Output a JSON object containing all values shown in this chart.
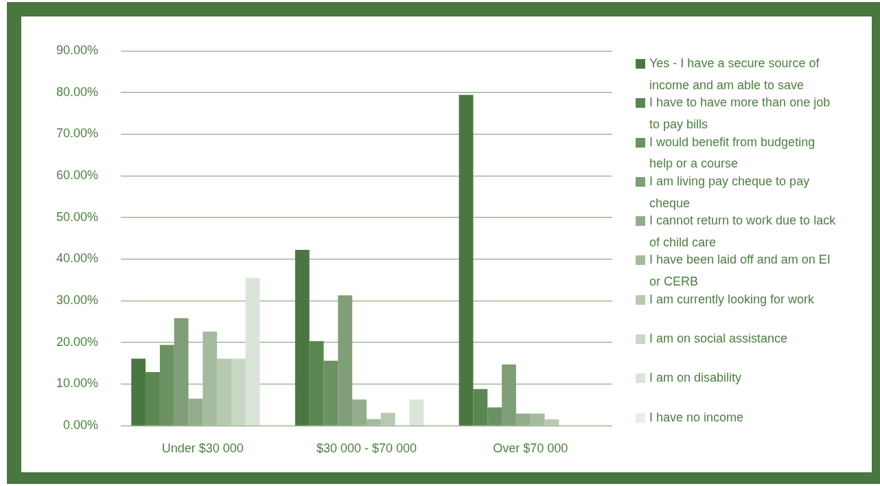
{
  "chart_data": {
    "type": "bar",
    "categories": [
      "Under $30 000",
      "$30 000 - $70 000",
      "Over $70 000"
    ],
    "series": [
      {
        "name": "Yes - I have a secure source of income and am able to save",
        "color": "#4a7741",
        "values": [
          16.1,
          42.2,
          79.4
        ]
      },
      {
        "name": "I have to have more than one job to pay bills",
        "color": "#5b8651",
        "values": [
          12.9,
          20.3,
          8.8
        ]
      },
      {
        "name": "I would benefit from budgeting help or a course",
        "color": "#6b9263",
        "values": [
          19.4,
          15.6,
          4.4
        ]
      },
      {
        "name": "I am living pay cheque to pay cheque",
        "color": "#809e77",
        "values": [
          25.8,
          31.3,
          14.7
        ]
      },
      {
        "name": "I cannot return to work due to lack of child care",
        "color": "#93ad8a",
        "values": [
          6.5,
          6.3,
          2.9
        ]
      },
      {
        "name": "I have been laid off and am on EI or CERB",
        "color": "#a5bb9e",
        "values": [
          22.6,
          1.6,
          2.9
        ]
      },
      {
        "name": "I am currently looking for work",
        "color": "#b8c9b1",
        "values": [
          16.1,
          3.1,
          1.5
        ]
      },
      {
        "name": "I am on social assistance",
        "color": "#c9d7c5",
        "values": [
          16.1,
          null,
          null
        ]
      },
      {
        "name": "I am on disability",
        "color": "#dbe4d9",
        "values": [
          35.5,
          6.3,
          null
        ]
      },
      {
        "name": "I have no income",
        "color": "#e9efe7",
        "values": [
          null,
          null,
          null
        ]
      }
    ],
    "ylim": [
      0,
      90
    ],
    "yticks": [
      {
        "value": 0,
        "label": "0.00%"
      },
      {
        "value": 10,
        "label": "10.00%"
      },
      {
        "value": 20,
        "label": "20.00%"
      },
      {
        "value": 30,
        "label": "30.00%"
      },
      {
        "value": 40,
        "label": "40.00%"
      },
      {
        "value": 50,
        "label": "50.00%"
      },
      {
        "value": 60,
        "label": "60.00%"
      },
      {
        "value": 70,
        "label": "70.00%"
      },
      {
        "value": 80,
        "label": "80.00%"
      },
      {
        "value": 90,
        "label": "90.00%"
      }
    ],
    "grid": "y",
    "legend": "right"
  }
}
